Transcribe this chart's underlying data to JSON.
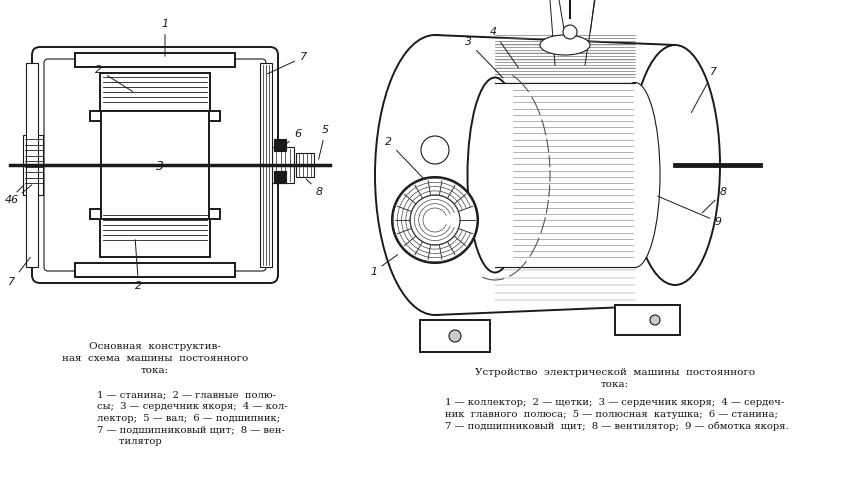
{
  "background_color": "#ffffff",
  "fig_width": 8.65,
  "fig_height": 4.82,
  "dpi": 100,
  "left_caption_title": "Основная  конструктив-\nная  схема  машины  постоянного\nтока:",
  "left_caption_body": "1 — станина;  2 — главные  полю-\nсы;  3 — сердечник якоря;  4 — кол-\nлектор;  5 — вал;  6 — подшипник;\n7 — подшипниковый щит;  8 — вен-\nтилятор",
  "right_caption_title": "Устройство  электрической  машины  постоянного\nтока:",
  "right_caption_body": "1 — коллектор;  2 — щетки;  3 — сердечник якоря;  4 — сердеч-\nник  главного  полюса;  5 — полюсная  катушка;  6 — станина;\n7 — подшипниковый  щит;  8 — вентилятор;  9 — обмотка якоря."
}
